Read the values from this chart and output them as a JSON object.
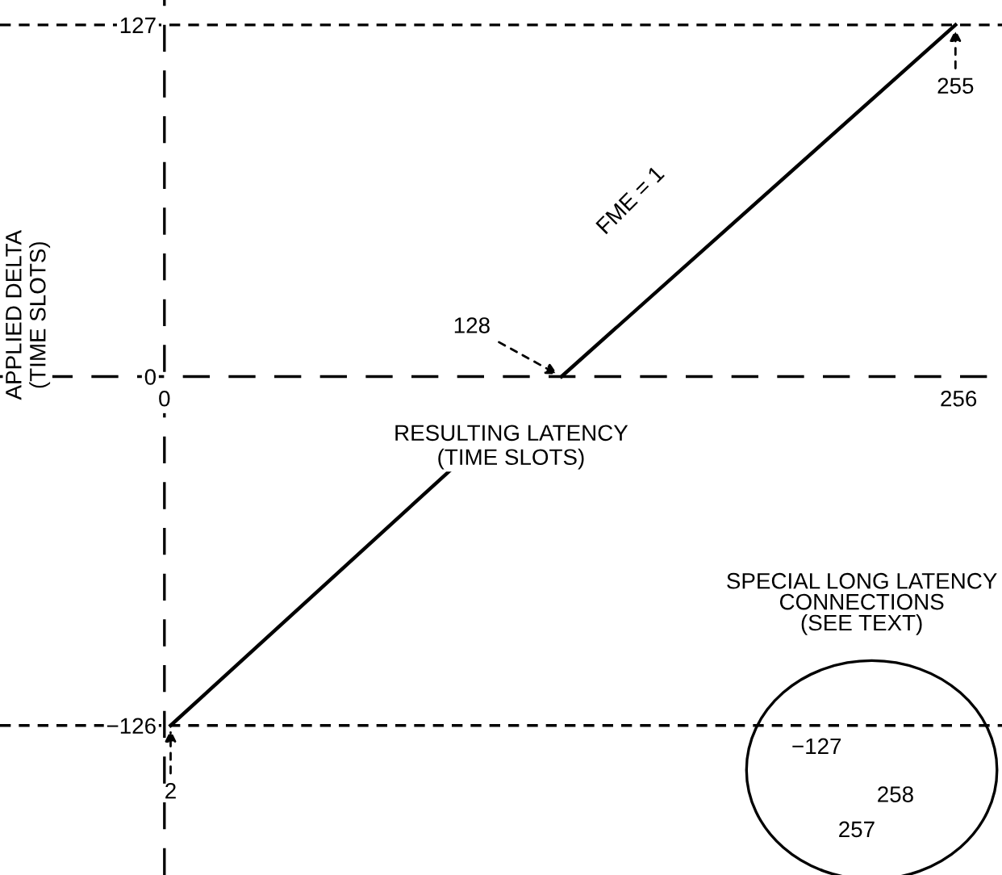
{
  "chart_data": {
    "type": "line",
    "xlabel": "RESULTING LATENCY\n(TIME SLOTS)",
    "ylabel": "APPLIED DELTA\n(TIME SLOTS)",
    "x": [
      2,
      92,
      110,
      128,
      255
    ],
    "series": [
      {
        "color": "#000000",
        "values": [
          -126,
          -34,
          null,
          0,
          127
        ]
      }
    ],
    "xlim": [
      -53,
      270
    ],
    "ylim": [
      -180,
      136
    ],
    "xticks": [
      0,
      256
    ],
    "yticks": [
      {
        "value": -126,
        "label": "−126"
      },
      0,
      127
    ],
    "line_style": "solid",
    "grid": false,
    "legend": false,
    "ref_lines": [
      {
        "axis": "y",
        "value": 127,
        "line_style": "dashed",
        "color": "#000000"
      },
      {
        "axis": "y",
        "value": -126,
        "line_style": "dashed",
        "color": "#000000"
      },
      {
        "axis": "x",
        "value": 0,
        "line_style": "longdash",
        "color": "#000000"
      },
      {
        "axis": "y",
        "value": 0,
        "line_style": "longdash",
        "color": "#000000"
      }
    ],
    "annotations": [
      {
        "text": "255",
        "x": 255,
        "y": 127
      },
      {
        "text": "128",
        "x": 128,
        "y": 0
      },
      {
        "text": "2",
        "x": 2,
        "y": -126
      },
      "FME = 1",
      "SPECIAL LONG LATENCY\nCONNECTIONS\n(SEE TEXT)",
      "−127",
      "257",
      "258"
    ]
  }
}
